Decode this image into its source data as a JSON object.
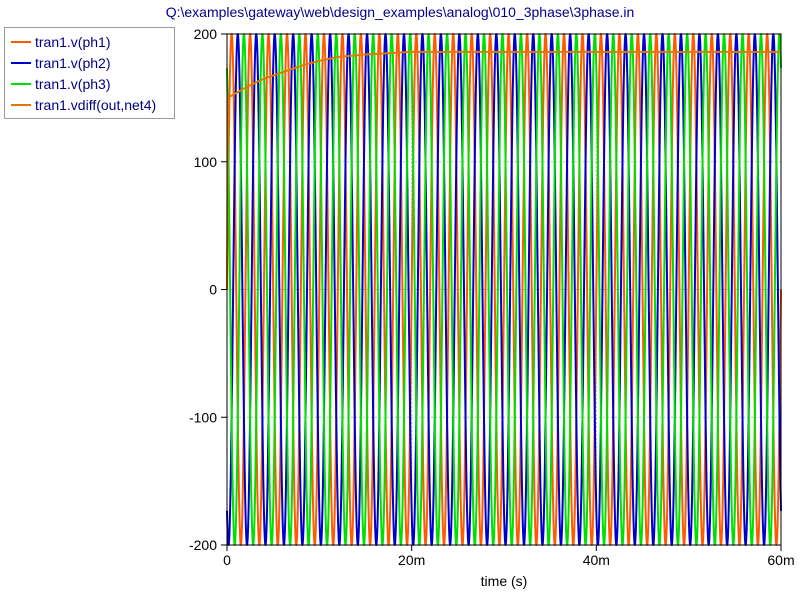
{
  "title": "Q:\\examples\\gateway\\web\\design_examples\\analog\\010_3phase\\3phase.in",
  "chart_data": {
    "type": "line",
    "xlabel": "time (s)",
    "ylabel": "",
    "xlim": [
      0,
      0.06
    ],
    "ylim": [
      -200,
      200
    ],
    "x_ticks": [
      {
        "value": 0,
        "label": "0"
      },
      {
        "value": 0.02,
        "label": "20m"
      },
      {
        "value": 0.04,
        "label": "40m"
      },
      {
        "value": 0.06,
        "label": "60m"
      }
    ],
    "y_ticks": [
      {
        "value": 200,
        "label": "200"
      },
      {
        "value": 100,
        "label": "100"
      },
      {
        "value": 0,
        "label": "0"
      },
      {
        "value": -100,
        "label": "-100"
      },
      {
        "value": -200,
        "label": "-200"
      }
    ],
    "grid": true,
    "legend_position": "top-left",
    "series": [
      {
        "name": "tran1.v(ph1)",
        "color": "#ff5a00",
        "kind": "sine",
        "amplitude": 200,
        "frequency_hz": 500,
        "phase_deg": 0
      },
      {
        "name": "tran1.v(ph2)",
        "color": "#0000cc",
        "kind": "sine",
        "amplitude": 200,
        "frequency_hz": 500,
        "phase_deg": -120
      },
      {
        "name": "tran1.v(ph3)",
        "color": "#00e000",
        "kind": "sine",
        "amplitude": 200,
        "frequency_hz": 500,
        "phase_deg": 120
      },
      {
        "name": "tran1.vdiff(out,net4)",
        "color": "#e07800",
        "kind": "rc_charge",
        "x": [
          0,
          0.0001,
          0.002,
          0.004,
          0.006,
          0.008,
          0.01,
          0.012,
          0.015,
          0.02,
          0.03,
          0.04,
          0.05,
          0.06
        ],
        "values": [
          0,
          150,
          158,
          165,
          170,
          175,
          179,
          182,
          184,
          186,
          186,
          186,
          186,
          186
        ]
      }
    ]
  }
}
